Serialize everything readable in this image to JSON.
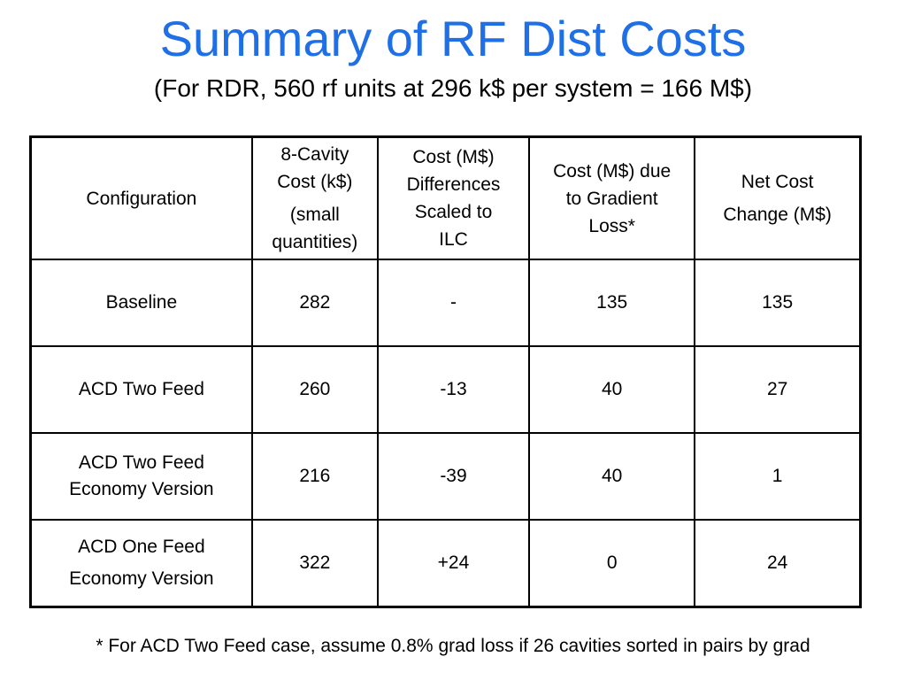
{
  "slide": {
    "title": "Summary of RF Dist Costs",
    "subtitle": "(For RDR, 560 rf units at 296 k$ per system = 166 M$)",
    "footnote": "* For ACD Two Feed case, assume 0.8% grad loss if 26 cavities sorted in pairs by grad"
  },
  "table": {
    "headers": {
      "configuration": "Configuration",
      "cavity_cost_line1": "8-Cavity",
      "cavity_cost_line2": "Cost (k$)",
      "cavity_cost_line3": "(small",
      "cavity_cost_line4": "quantities)",
      "differences_line1": "Cost (M$)",
      "differences_line2": "Differences",
      "differences_line3": "Scaled to",
      "differences_line4": "ILC",
      "gradient_line1": "Cost (M$) due",
      "gradient_line2": "to Gradient",
      "gradient_line3": "Loss*",
      "net_line1": "Net Cost",
      "net_line2": "Change (M$)"
    },
    "rows": [
      {
        "config_line1": "Baseline",
        "config_line2": "",
        "cavity_cost": "282",
        "differences": "-",
        "gradient_loss": "135",
        "net_change": "135"
      },
      {
        "config_line1": "ACD Two Feed",
        "config_line2": "",
        "cavity_cost": "260",
        "differences": "-13",
        "gradient_loss": "40",
        "net_change": "27"
      },
      {
        "config_line1": "ACD Two Feed",
        "config_line2": "Economy Version",
        "cavity_cost": "216",
        "differences": "-39",
        "gradient_loss": "40",
        "net_change": "1"
      },
      {
        "config_line1": "ACD One Feed",
        "config_line2": "Economy Version",
        "cavity_cost": "322",
        "differences": "+24",
        "gradient_loss": "0",
        "net_change": "24"
      }
    ]
  },
  "colors": {
    "title": "#1f6fe6",
    "text": "#000000",
    "border": "#000000",
    "background": "#ffffff"
  }
}
